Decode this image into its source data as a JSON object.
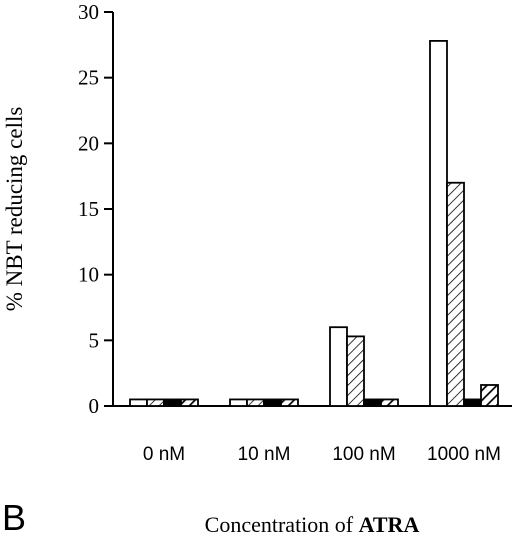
{
  "panel_label": "B",
  "chart_data": {
    "type": "bar",
    "categories": [
      "0 nM",
      "10 nM",
      "100 nM",
      "1000 nM"
    ],
    "series": [
      {
        "style": "open",
        "values": [
          0.5,
          0.5,
          6.0,
          27.8
        ]
      },
      {
        "style": "hatched",
        "values": [
          0.5,
          0.5,
          5.3,
          17.0
        ]
      },
      {
        "style": "solid",
        "values": [
          0.5,
          0.5,
          0.5,
          0.5
        ]
      },
      {
        "style": "thick-hatched",
        "values": [
          0.5,
          0.5,
          0.5,
          1.6
        ]
      }
    ],
    "ylabel": "% NBT reducing cells",
    "xlabel_prefix": "Concentration of ",
    "xlabel_emphasis": "ATRA",
    "ylim": [
      0,
      30
    ],
    "yticks": [
      "0",
      "5",
      "10",
      "15",
      "20",
      "25",
      "30"
    ],
    "grid": false,
    "legend": "none"
  }
}
